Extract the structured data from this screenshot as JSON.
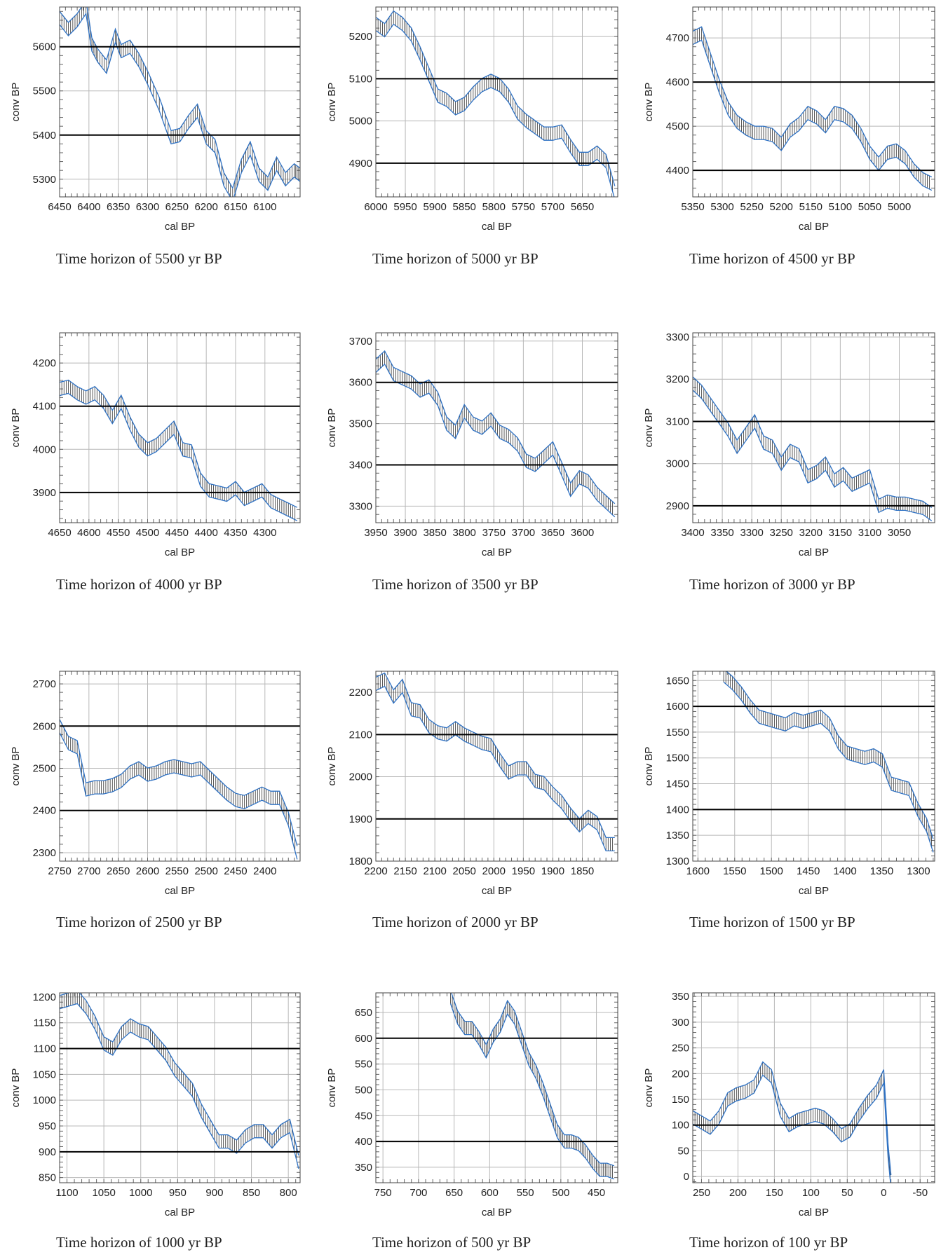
{
  "chart_data": [
    {
      "type": "line",
      "caption": "Time horizon of 5500 yr BP",
      "xlabel": "cal BP",
      "ylabel": "conv BP",
      "xlim": [
        6450,
        6040
      ],
      "ylim": [
        5260,
        5690
      ],
      "x_ticks": [
        6450,
        6400,
        6350,
        6300,
        6250,
        6200,
        6150,
        6100
      ],
      "y_ticks": [
        5300,
        5400,
        5500,
        5600
      ],
      "horizon_lines": [
        5600,
        5400
      ],
      "grid": true,
      "series": [
        {
          "x": [
            6450,
            6435,
            6420,
            6405,
            6395,
            6385,
            6370,
            6355,
            6345,
            6330,
            6315,
            6300,
            6280,
            6260,
            6245,
            6230,
            6215,
            6200,
            6185,
            6170,
            6155,
            6140,
            6125,
            6110,
            6095,
            6080,
            6065,
            6050,
            6040
          ],
          "values": [
            5665,
            5640,
            5660,
            5690,
            5605,
            5580,
            5555,
            5625,
            5590,
            5600,
            5570,
            5530,
            5470,
            5395,
            5400,
            5430,
            5455,
            5395,
            5375,
            5300,
            5265,
            5330,
            5370,
            5310,
            5290,
            5335,
            5300,
            5320,
            5310
          ]
        }
      ]
    },
    {
      "type": "line",
      "caption": "Time horizon of 5000 yr BP",
      "xlabel": "cal BP",
      "ylabel": "conv BP",
      "xlim": [
        6000,
        5590
      ],
      "ylim": [
        4820,
        5270
      ],
      "x_ticks": [
        6000,
        5950,
        5900,
        5850,
        5800,
        5750,
        5700,
        5650
      ],
      "y_ticks": [
        4900,
        5000,
        5100,
        5200
      ],
      "horizon_lines": [
        5100,
        4900
      ],
      "grid": true,
      "series": [
        {
          "x": [
            6000,
            5985,
            5970,
            5955,
            5940,
            5925,
            5910,
            5895,
            5880,
            5865,
            5850,
            5835,
            5820,
            5805,
            5790,
            5775,
            5760,
            5745,
            5730,
            5715,
            5700,
            5685,
            5670,
            5655,
            5640,
            5625,
            5610,
            5595
          ],
          "values": [
            5230,
            5215,
            5245,
            5230,
            5205,
            5160,
            5110,
            5060,
            5050,
            5030,
            5040,
            5065,
            5085,
            5095,
            5085,
            5060,
            5020,
            5000,
            4985,
            4970,
            4970,
            4975,
            4940,
            4910,
            4910,
            4925,
            4905,
            4830
          ]
        }
      ]
    },
    {
      "type": "line",
      "caption": "Time horizon of 4500 yr BP",
      "xlabel": "cal BP",
      "ylabel": "conv BP",
      "xlim": [
        5350,
        4940
      ],
      "ylim": [
        4340,
        4770
      ],
      "x_ticks": [
        5350,
        5300,
        5250,
        5200,
        5150,
        5100,
        5050,
        5000
      ],
      "y_ticks": [
        4400,
        4500,
        4600,
        4700
      ],
      "horizon_lines": [
        4600,
        4400
      ],
      "grid": true,
      "series": [
        {
          "x": [
            5350,
            5335,
            5320,
            5305,
            5290,
            5275,
            5260,
            5245,
            5230,
            5215,
            5200,
            5185,
            5170,
            5155,
            5140,
            5125,
            5110,
            5095,
            5080,
            5065,
            5050,
            5035,
            5020,
            5005,
            4990,
            4975,
            4960,
            4945
          ],
          "values": [
            4700,
            4710,
            4650,
            4590,
            4540,
            4510,
            4495,
            4485,
            4485,
            4480,
            4460,
            4490,
            4505,
            4530,
            4520,
            4500,
            4530,
            4525,
            4510,
            4480,
            4440,
            4415,
            4440,
            4445,
            4430,
            4400,
            4380,
            4370
          ]
        }
      ]
    },
    {
      "type": "line",
      "caption": "Time horizon of 4000 yr BP",
      "xlabel": "cal BP",
      "ylabel": "conv BP",
      "xlim": [
        4650,
        4240
      ],
      "ylim": [
        3830,
        4270
      ],
      "x_ticks": [
        4650,
        4600,
        4550,
        4500,
        4450,
        4400,
        4350,
        4300
      ],
      "y_ticks": [
        3900,
        4000,
        4100,
        4200
      ],
      "horizon_lines": [
        4100,
        3900
      ],
      "grid": true,
      "series": [
        {
          "x": [
            4650,
            4635,
            4620,
            4605,
            4590,
            4575,
            4560,
            4545,
            4530,
            4515,
            4500,
            4485,
            4470,
            4455,
            4440,
            4425,
            4410,
            4395,
            4380,
            4365,
            4350,
            4335,
            4320,
            4305,
            4290,
            4275,
            4260,
            4245
          ],
          "values": [
            4140,
            4145,
            4130,
            4120,
            4130,
            4110,
            4075,
            4110,
            4060,
            4020,
            4000,
            4010,
            4030,
            4050,
            4000,
            3995,
            3930,
            3905,
            3900,
            3895,
            3910,
            3885,
            3895,
            3905,
            3880,
            3870,
            3860,
            3850
          ]
        }
      ]
    },
    {
      "type": "line",
      "caption": "Time horizon of 3500 yr BP",
      "xlabel": "cal BP",
      "ylabel": "conv BP",
      "xlim": [
        3950,
        3540
      ],
      "ylim": [
        3260,
        3720
      ],
      "x_ticks": [
        3950,
        3900,
        3850,
        3800,
        3750,
        3700,
        3650,
        3600
      ],
      "y_ticks": [
        3300,
        3400,
        3500,
        3600,
        3700
      ],
      "horizon_lines": [
        3600,
        3400
      ],
      "grid": true,
      "series": [
        {
          "x": [
            3950,
            3935,
            3920,
            3905,
            3890,
            3875,
            3860,
            3845,
            3830,
            3815,
            3800,
            3785,
            3770,
            3755,
            3740,
            3725,
            3710,
            3695,
            3680,
            3665,
            3650,
            3635,
            3620,
            3605,
            3590,
            3575,
            3560,
            3545
          ],
          "values": [
            3640,
            3660,
            3620,
            3610,
            3600,
            3580,
            3590,
            3560,
            3500,
            3480,
            3530,
            3500,
            3490,
            3510,
            3480,
            3470,
            3450,
            3410,
            3400,
            3420,
            3440,
            3390,
            3340,
            3370,
            3360,
            3330,
            3310,
            3290
          ]
        }
      ]
    },
    {
      "type": "line",
      "caption": "Time horizon of 3000 yr BP",
      "xlabel": "cal BP",
      "ylabel": "conv BP",
      "xlim": [
        3400,
        2990
      ],
      "ylim": [
        2860,
        3310
      ],
      "x_ticks": [
        3400,
        3350,
        3300,
        3250,
        3200,
        3150,
        3100,
        3050
      ],
      "y_ticks": [
        2900,
        3000,
        3100,
        3200,
        3300
      ],
      "horizon_lines": [
        3100,
        2900
      ],
      "grid": true,
      "series": [
        {
          "x": [
            3400,
            3385,
            3370,
            3355,
            3340,
            3325,
            3310,
            3295,
            3280,
            3265,
            3250,
            3235,
            3220,
            3205,
            3190,
            3175,
            3160,
            3145,
            3130,
            3115,
            3100,
            3085,
            3070,
            3055,
            3040,
            3025,
            3010,
            2995
          ],
          "values": [
            3190,
            3170,
            3140,
            3110,
            3080,
            3040,
            3070,
            3100,
            3050,
            3040,
            3000,
            3030,
            3020,
            2970,
            2980,
            3000,
            2960,
            2975,
            2950,
            2960,
            2970,
            2900,
            2910,
            2905,
            2905,
            2900,
            2895,
            2880
          ]
        }
      ]
    },
    {
      "type": "line",
      "caption": "Time horizon of 2500 yr BP",
      "xlabel": "cal BP",
      "ylabel": "conv BP",
      "xlim": [
        2750,
        2340
      ],
      "ylim": [
        2280,
        2730
      ],
      "x_ticks": [
        2750,
        2700,
        2650,
        2600,
        2550,
        2500,
        2450,
        2400
      ],
      "y_ticks": [
        2300,
        2400,
        2500,
        2600,
        2700
      ],
      "horizon_lines": [
        2600,
        2400
      ],
      "grid": true,
      "series": [
        {
          "x": [
            2750,
            2735,
            2720,
            2705,
            2690,
            2675,
            2660,
            2645,
            2630,
            2615,
            2600,
            2585,
            2570,
            2555,
            2540,
            2525,
            2510,
            2495,
            2480,
            2465,
            2450,
            2435,
            2420,
            2405,
            2390,
            2375,
            2360,
            2345
          ],
          "values": [
            2600,
            2560,
            2550,
            2450,
            2455,
            2455,
            2460,
            2470,
            2490,
            2500,
            2485,
            2490,
            2500,
            2505,
            2500,
            2495,
            2500,
            2480,
            2460,
            2440,
            2425,
            2420,
            2430,
            2440,
            2430,
            2430,
            2380,
            2300
          ]
        }
      ]
    },
    {
      "type": "line",
      "caption": "Time horizon of 2000 yr BP",
      "xlabel": "cal BP",
      "ylabel": "conv BP",
      "xlim": [
        2200,
        1790
      ],
      "ylim": [
        1800,
        2250
      ],
      "x_ticks": [
        2200,
        2150,
        2100,
        2050,
        2000,
        1950,
        1900,
        1850
      ],
      "y_ticks": [
        1800,
        1900,
        2000,
        2100,
        2200
      ],
      "horizon_lines": [
        2100,
        1900
      ],
      "grid": true,
      "series": [
        {
          "x": [
            2200,
            2185,
            2170,
            2155,
            2140,
            2125,
            2110,
            2095,
            2080,
            2065,
            2050,
            2035,
            2020,
            2005,
            1990,
            1975,
            1960,
            1945,
            1930,
            1915,
            1900,
            1885,
            1870,
            1855,
            1840,
            1825,
            1810,
            1795
          ],
          "values": [
            2220,
            2230,
            2190,
            2215,
            2160,
            2155,
            2120,
            2105,
            2100,
            2115,
            2100,
            2090,
            2080,
            2075,
            2040,
            2010,
            2020,
            2020,
            1990,
            1985,
            1960,
            1940,
            1910,
            1885,
            1905,
            1890,
            1840,
            1840
          ]
        }
      ]
    },
    {
      "type": "line",
      "caption": "Time horizon of 1500 yr BP",
      "xlabel": "cal BP",
      "ylabel": "conv BP",
      "xlim": [
        1607,
        1278
      ],
      "ylim": [
        1300,
        1668
      ],
      "x_ticks": [
        1600,
        1550,
        1500,
        1450,
        1400,
        1350,
        1300
      ],
      "y_ticks": [
        1300,
        1350,
        1400,
        1450,
        1500,
        1550,
        1600,
        1650
      ],
      "horizon_lines": [
        1600,
        1400
      ],
      "grid": true,
      "series": [
        {
          "x": [
            1565,
            1553,
            1541,
            1529,
            1517,
            1505,
            1493,
            1481,
            1469,
            1457,
            1445,
            1433,
            1421,
            1409,
            1397,
            1385,
            1373,
            1361,
            1349,
            1337,
            1325,
            1313,
            1301,
            1289,
            1280
          ],
          "values": [
            1660,
            1645,
            1625,
            1600,
            1580,
            1575,
            1570,
            1565,
            1575,
            1570,
            1575,
            1580,
            1565,
            1530,
            1510,
            1505,
            1500,
            1505,
            1495,
            1450,
            1445,
            1440,
            1400,
            1370,
            1330
          ]
        }
      ]
    },
    {
      "type": "line",
      "caption": "Time horizon of 1000 yr BP",
      "xlabel": "cal BP",
      "ylabel": "conv BP",
      "xlim": [
        1110,
        784
      ],
      "ylim": [
        840,
        1208
      ],
      "x_ticks": [
        1100,
        1050,
        1000,
        950,
        900,
        850,
        800
      ],
      "y_ticks": [
        850,
        900,
        950,
        1000,
        1050,
        1100,
        1150,
        1200
      ],
      "horizon_lines": [
        1100,
        900
      ],
      "grid": true,
      "series": [
        {
          "x": [
            1110,
            1098,
            1086,
            1074,
            1062,
            1050,
            1038,
            1026,
            1014,
            1002,
            990,
            978,
            966,
            954,
            942,
            930,
            918,
            906,
            894,
            882,
            870,
            858,
            846,
            834,
            822,
            810,
            798,
            786
          ],
          "values": [
            1190,
            1195,
            1200,
            1180,
            1150,
            1110,
            1100,
            1130,
            1145,
            1135,
            1130,
            1110,
            1090,
            1060,
            1040,
            1020,
            980,
            950,
            920,
            920,
            910,
            930,
            940,
            940,
            920,
            940,
            950,
            880
          ]
        }
      ]
    },
    {
      "type": "line",
      "caption": "Time horizon of 500 yr BP",
      "xlabel": "cal BP",
      "ylabel": "conv BP",
      "xlim": [
        760,
        420
      ],
      "ylim": [
        320,
        688
      ],
      "x_ticks": [
        750,
        700,
        650,
        600,
        550,
        500,
        450
      ],
      "y_ticks": [
        350,
        400,
        450,
        500,
        550,
        600,
        650
      ],
      "horizon_lines": [
        600,
        400
      ],
      "grid": true,
      "series": [
        {
          "x": [
            655,
            645,
            635,
            625,
            615,
            605,
            595,
            585,
            575,
            565,
            555,
            545,
            535,
            525,
            515,
            505,
            495,
            485,
            475,
            465,
            455,
            445,
            435,
            425
          ],
          "values": [
            680,
            640,
            620,
            620,
            600,
            575,
            605,
            625,
            660,
            640,
            600,
            560,
            535,
            500,
            460,
            420,
            400,
            400,
            395,
            380,
            360,
            345,
            345,
            340
          ]
        }
      ]
    },
    {
      "type": "line",
      "caption": "Time horizon of 100 yr BP",
      "xlabel": "cal BP",
      "ylabel": "conv BP",
      "xlim": [
        262,
        -70
      ],
      "ylim": [
        -12,
        357
      ],
      "x_ticks": [
        250,
        200,
        150,
        100,
        50,
        0,
        -50
      ],
      "y_ticks": [
        0,
        50,
        100,
        150,
        200,
        250,
        300,
        350
      ],
      "horizon_lines": [
        100
      ],
      "grid": true,
      "series": [
        {
          "x": [
            262,
            250,
            238,
            226,
            214,
            202,
            190,
            178,
            166,
            154,
            142,
            130,
            118,
            106,
            94,
            82,
            70,
            58,
            46,
            34,
            22,
            10,
            0,
            -6,
            -10
          ],
          "values": [
            115,
            105,
            95,
            115,
            150,
            160,
            165,
            175,
            210,
            195,
            130,
            100,
            110,
            115,
            120,
            115,
            100,
            80,
            90,
            120,
            145,
            165,
            195,
            50,
            -10
          ]
        }
      ]
    }
  ]
}
